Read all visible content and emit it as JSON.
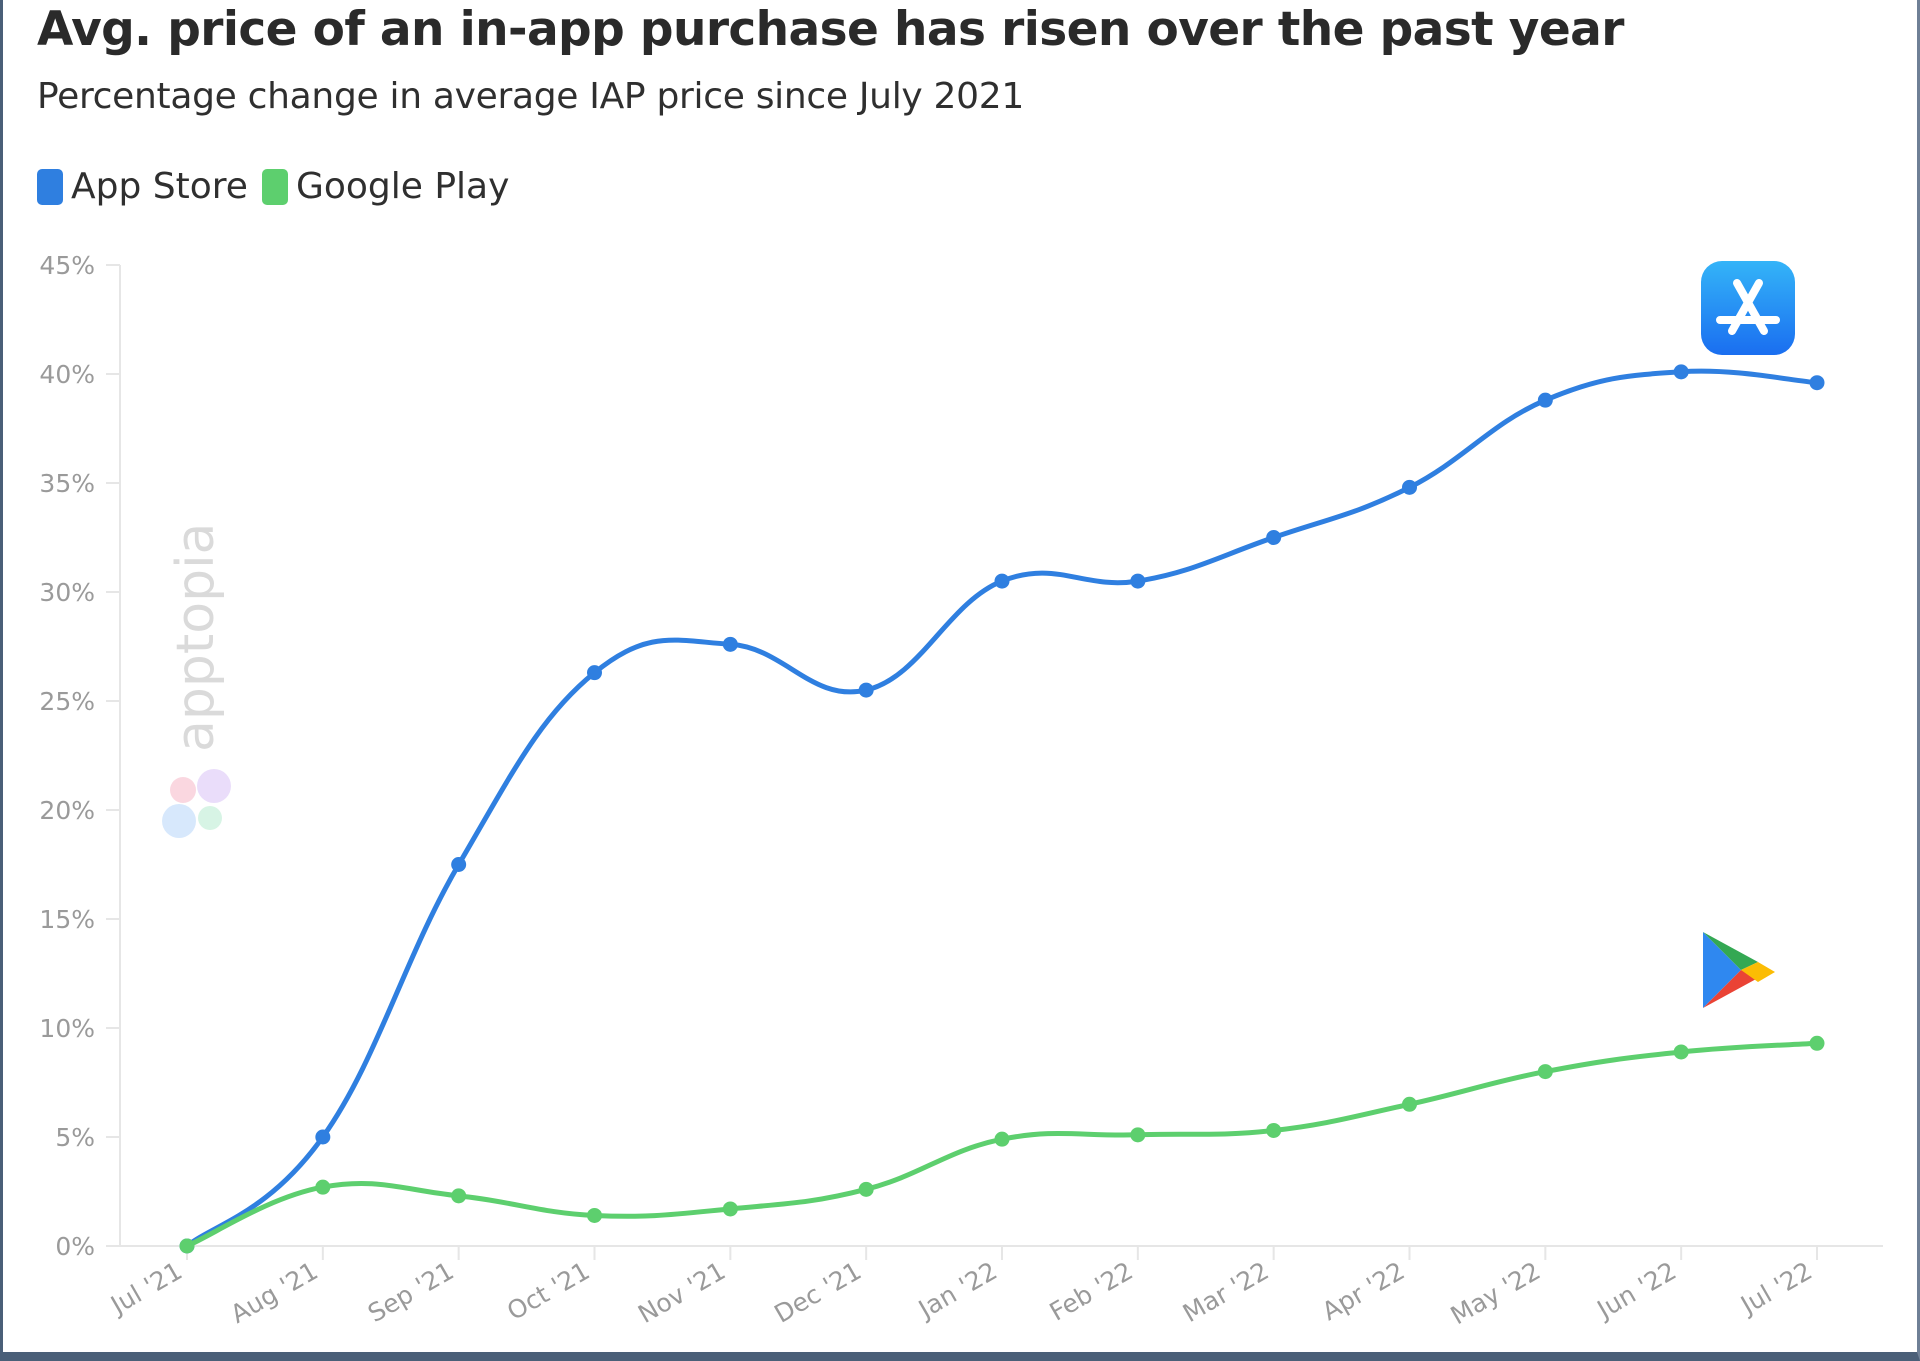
{
  "title": "Avg. price of an in-app purchase has risen over the past year",
  "subtitle": "Percentage change in average IAP price since July 2021",
  "legend": [
    {
      "label": "App Store",
      "color": "#2f7fe0"
    },
    {
      "label": "Google Play",
      "color": "#5dcf6e"
    }
  ],
  "watermark": {
    "text": "apptopia",
    "logo": "apptopia-logo-icon"
  },
  "icons": [
    "app-store-icon",
    "google-play-icon"
  ],
  "colors": {
    "app_store": "#2f7fe0",
    "google_play": "#5dcf6e",
    "grid": "#eeeeee",
    "tick_text": "#9a9a9a"
  },
  "chart_data": {
    "type": "line",
    "title": "Avg. price of an in-app purchase has risen over the past year",
    "subtitle": "Percentage change in average IAP price since July 2021",
    "xlabel": "",
    "ylabel": "",
    "categories": [
      "Jul '21",
      "Aug '21",
      "Sep '21",
      "Oct '21",
      "Nov '21",
      "Dec '21",
      "Jan '22",
      "Feb '22",
      "Mar '22",
      "Apr '22",
      "May '22",
      "Jun '22",
      "Jul '22"
    ],
    "y_ticks": [
      "0%",
      "5%",
      "10%",
      "15%",
      "20%",
      "25%",
      "30%",
      "35%",
      "40%",
      "45%"
    ],
    "ylim": [
      0,
      45
    ],
    "y_unit": "%",
    "grid": false,
    "legend_position": "top-left",
    "series": [
      {
        "name": "App Store",
        "color": "#2f7fe0",
        "values": [
          0,
          5.0,
          17.5,
          26.3,
          27.6,
          25.5,
          30.5,
          30.5,
          32.5,
          34.8,
          38.8,
          40.1,
          39.6
        ]
      },
      {
        "name": "Google Play",
        "color": "#5dcf6e",
        "values": [
          0,
          2.7,
          2.3,
          1.4,
          1.7,
          2.6,
          4.9,
          5.1,
          5.3,
          6.5,
          8.0,
          8.9,
          9.3
        ]
      }
    ]
  }
}
